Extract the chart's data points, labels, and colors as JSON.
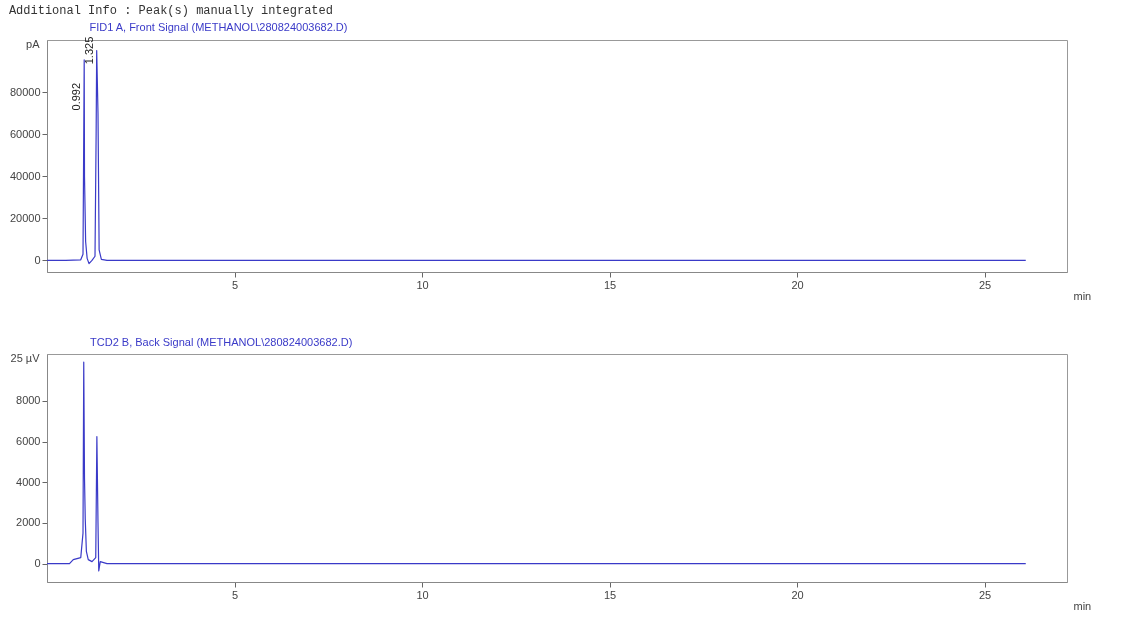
{
  "chart_data": [
    {
      "type": "line",
      "title": "FID1 A, Front Signal (METHANOL\\280824003682.D)",
      "xlabel": "min",
      "annotations": [
        "Additional Info : Peak(s) manually integrated",
        {
          "text": "0.992",
          "x": 0.992,
          "y": 78000
        },
        {
          "text": "1.325",
          "x": 1.325,
          "y": 100000
        }
      ],
      "x": [
        0,
        0.5,
        0.9,
        0.96,
        0.98,
        0.992,
        1.0,
        1.03,
        1.07,
        1.12,
        1.2,
        1.28,
        1.31,
        1.325,
        1.36,
        1.39,
        1.45,
        1.6,
        4,
        26.1
      ],
      "series": [
        {
          "color": "#3a3ac8",
          "values": [
            0,
            0,
            300,
            3000,
            60000,
            95500,
            40000,
            9000,
            1000,
            -1500,
            0,
            2000,
            60000,
            100000,
            70000,
            5000,
            500,
            0,
            0,
            0
          ]
        }
      ],
      "xlim": [
        0,
        27.2
      ],
      "ylim": [
        -5500,
        105000
      ],
      "xticks": [
        5,
        10,
        15,
        20,
        25
      ],
      "ylabel": "pA",
      "yticks": [
        0,
        20000,
        40000,
        60000,
        80000
      ]
    },
    {
      "type": "line",
      "title": "TCD2 B, Back Signal (METHANOL\\280824003682.D)",
      "xlabel": "min",
      "x": [
        0,
        0.6,
        0.7,
        0.9,
        0.96,
        0.98,
        1.0,
        1.02,
        1.05,
        1.1,
        1.2,
        1.3,
        1.33,
        1.36,
        1.38,
        1.42,
        1.6,
        26.1
      ],
      "series": [
        {
          "color": "#3a3ac8",
          "values": [
            0,
            0,
            200,
            300,
            1500,
            9900,
            4200,
            2200,
            600,
            200,
            100,
            300,
            6240,
            2000,
            -360,
            100,
            0,
            0
          ]
        }
      ],
      "xlim": [
        0,
        27.2
      ],
      "ylim": [
        -900,
        10300
      ],
      "xticks": [
        5,
        10,
        15,
        20,
        25
      ],
      "ylabel": "25 µV",
      "yticks": [
        0,
        2000,
        4000,
        6000,
        8000
      ]
    }
  ]
}
